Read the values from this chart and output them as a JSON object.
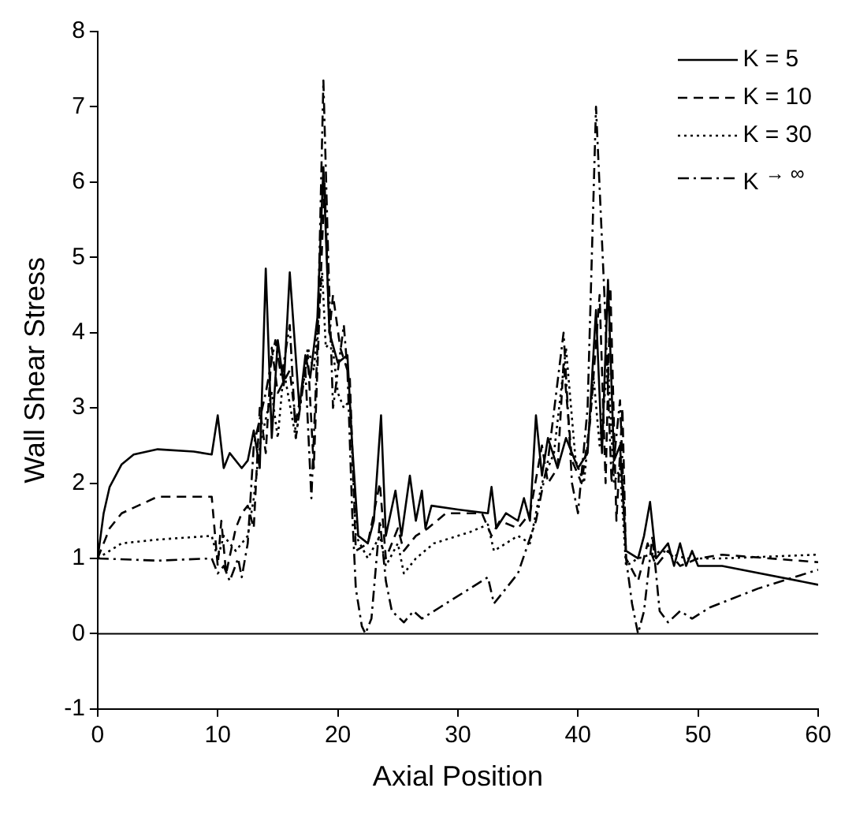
{
  "chart_data": {
    "type": "line",
    "xlabel": "Axial Position",
    "ylabel": "Wall Shear Stress",
    "xlim": [
      0,
      60
    ],
    "xticks": [
      0,
      10,
      20,
      30,
      40,
      50,
      60
    ],
    "ylim": [
      -1,
      8
    ],
    "yticks": [
      -1,
      0,
      1,
      2,
      3,
      4,
      5,
      6,
      7,
      8
    ],
    "grid": false,
    "legend": "top right",
    "marker": "none",
    "ref_lines": [
      {
        "axis": "y",
        "value": 0,
        "color": "#000000"
      }
    ],
    "series": [
      {
        "name": "K = 5",
        "color": "#000000",
        "line_style": "solid",
        "x": [
          0,
          0.5,
          1,
          2,
          3,
          5,
          8,
          9.5,
          10,
          10.5,
          11,
          12,
          12.5,
          13,
          13.5,
          14,
          14.5,
          15,
          15.5,
          16,
          16.8,
          17.3,
          17.7,
          18.3,
          18.8,
          19.3,
          20,
          20.8,
          21.2,
          21.7,
          22.5,
          23,
          23.6,
          24,
          24.8,
          25.3,
          26,
          26.5,
          27,
          27.3,
          27.8,
          30,
          32.5,
          32.8,
          33.2,
          34,
          35,
          35.5,
          36,
          36.5,
          37,
          37.5,
          38.3,
          39,
          40,
          40.8,
          41.5,
          42,
          42.5,
          43,
          43.5,
          44,
          45,
          45.5,
          46,
          46.5,
          47.5,
          48,
          48.5,
          49,
          49.5,
          50,
          52,
          60
        ],
        "values": [
          1.0,
          1.6,
          1.95,
          2.25,
          2.38,
          2.45,
          2.42,
          2.38,
          2.9,
          2.2,
          2.4,
          2.2,
          2.3,
          2.7,
          2.2,
          4.85,
          2.6,
          3.9,
          3.3,
          4.8,
          3.0,
          3.7,
          3.4,
          4.2,
          6.2,
          4.0,
          3.6,
          3.7,
          2.5,
          1.3,
          1.2,
          1.5,
          2.9,
          1.3,
          1.9,
          1.3,
          2.1,
          1.5,
          1.9,
          1.4,
          1.7,
          1.65,
          1.6,
          1.95,
          1.4,
          1.6,
          1.5,
          1.8,
          1.5,
          2.9,
          2.1,
          2.6,
          2.2,
          2.6,
          2.2,
          2.4,
          4.3,
          2.4,
          4.7,
          2.3,
          2.5,
          1.1,
          1.0,
          1.3,
          1.75,
          1.0,
          1.2,
          0.9,
          1.2,
          0.9,
          1.1,
          0.9,
          0.9,
          0.65
        ]
      },
      {
        "name": "K = 10",
        "color": "#000000",
        "line_style": "dashed",
        "x": [
          0,
          1,
          2,
          5,
          9.5,
          10,
          10.3,
          10.7,
          11.5,
          12,
          12.5,
          13,
          13.5,
          14,
          14.5,
          15,
          16,
          16.5,
          17.5,
          18,
          18.5,
          18.9,
          19.3,
          19.6,
          20.2,
          21,
          21.5,
          22.5,
          23.5,
          24,
          25,
          25.5,
          26.5,
          27.5,
          29,
          32,
          32.8,
          33.5,
          35,
          36,
          37,
          37.5,
          38.3,
          38.8,
          39.5,
          40.3,
          41,
          41.8,
          42.3,
          42.7,
          43.2,
          43.7,
          44,
          45,
          45.8,
          46.5,
          47.5,
          48.5,
          50,
          52,
          60
        ],
        "values": [
          1.0,
          1.4,
          1.6,
          1.82,
          1.82,
          0.9,
          1.5,
          0.8,
          1.4,
          1.6,
          1.7,
          1.4,
          3.0,
          2.4,
          3.8,
          3.2,
          3.5,
          2.8,
          3.7,
          2.2,
          4.4,
          6.0,
          4.0,
          4.5,
          3.8,
          3.4,
          1.1,
          1.2,
          2.0,
          1.0,
          1.4,
          1.1,
          1.3,
          1.4,
          1.6,
          1.6,
          1.3,
          1.5,
          1.4,
          1.6,
          2.5,
          2.0,
          2.2,
          3.6,
          2.3,
          2.0,
          2.8,
          4.5,
          2.0,
          4.6,
          1.5,
          3.0,
          1.0,
          0.7,
          1.2,
          0.9,
          1.1,
          0.9,
          1.0,
          1.05,
          0.95
        ]
      },
      {
        "name": "K = 30",
        "color": "#000000",
        "line_style": "dotted",
        "x": [
          0,
          2,
          5,
          9.5,
          10,
          10.5,
          11.5,
          12.5,
          13,
          13.5,
          14.5,
          15,
          15.5,
          16.5,
          17.5,
          18,
          18.7,
          19,
          19.5,
          20,
          20.5,
          21,
          21.5,
          22.5,
          23.5,
          24,
          25,
          25.5,
          26.5,
          28,
          31,
          32.5,
          33,
          35,
          36,
          37,
          38,
          39,
          39.8,
          40.5,
          41.3,
          41.8,
          42.5,
          43,
          43.5,
          44,
          45,
          47,
          49,
          52,
          60
        ],
        "values": [
          1.0,
          1.2,
          1.25,
          1.3,
          1.0,
          1.3,
          1.1,
          1.3,
          1.8,
          2.5,
          3.2,
          2.6,
          3.5,
          2.6,
          3.8,
          3.5,
          4.8,
          3.8,
          3.9,
          3.2,
          3.0,
          3.1,
          1.3,
          1.0,
          1.3,
          0.9,
          1.2,
          0.8,
          1.0,
          1.2,
          1.35,
          1.45,
          1.1,
          1.3,
          1.2,
          2.0,
          2.4,
          3.8,
          2.3,
          2.0,
          3.4,
          2.5,
          3.6,
          2.0,
          2.2,
          0.9,
          1.0,
          1.1,
          1.0,
          1.0,
          1.05
        ]
      },
      {
        "name": "K $^{→ ∞}$",
        "color": "#000000",
        "line_style": "dashdot",
        "x": [
          0,
          5,
          9.5,
          10,
          10.5,
          11,
          11.7,
          12,
          12.5,
          13,
          14,
          14.8,
          15.3,
          16,
          16.5,
          17.3,
          17.8,
          18.3,
          18.8,
          19.2,
          19.6,
          20.5,
          20.8,
          21.2,
          21.5,
          22,
          22.3,
          22.8,
          23.5,
          24,
          24.5,
          25.5,
          26.3,
          27,
          28.5,
          31,
          32.5,
          33,
          34,
          35,
          36.5,
          37.5,
          38.8,
          39.5,
          40,
          40.8,
          41.5,
          42.2,
          42.8,
          43.5,
          44,
          44.5,
          45,
          45.5,
          46.2,
          46.8,
          47.5,
          48.5,
          49.5,
          51,
          55,
          60
        ],
        "values": [
          1.0,
          0.97,
          1.0,
          0.8,
          0.9,
          0.7,
          1.0,
          0.75,
          1.2,
          2.5,
          3.2,
          3.9,
          3.4,
          4.1,
          2.6,
          3.5,
          1.8,
          3.8,
          7.35,
          5.0,
          3.0,
          4.1,
          3.5,
          1.6,
          0.6,
          0.1,
          0.0,
          0.2,
          1.5,
          0.7,
          0.3,
          0.15,
          0.3,
          0.2,
          0.35,
          0.6,
          0.75,
          0.4,
          0.6,
          0.8,
          1.5,
          2.3,
          4.0,
          2.0,
          1.6,
          3.0,
          7.0,
          4.5,
          2.0,
          3.1,
          1.0,
          0.4,
          0.0,
          0.3,
          1.3,
          0.3,
          0.15,
          0.3,
          0.2,
          0.35,
          0.6,
          0.85
        ]
      }
    ]
  }
}
